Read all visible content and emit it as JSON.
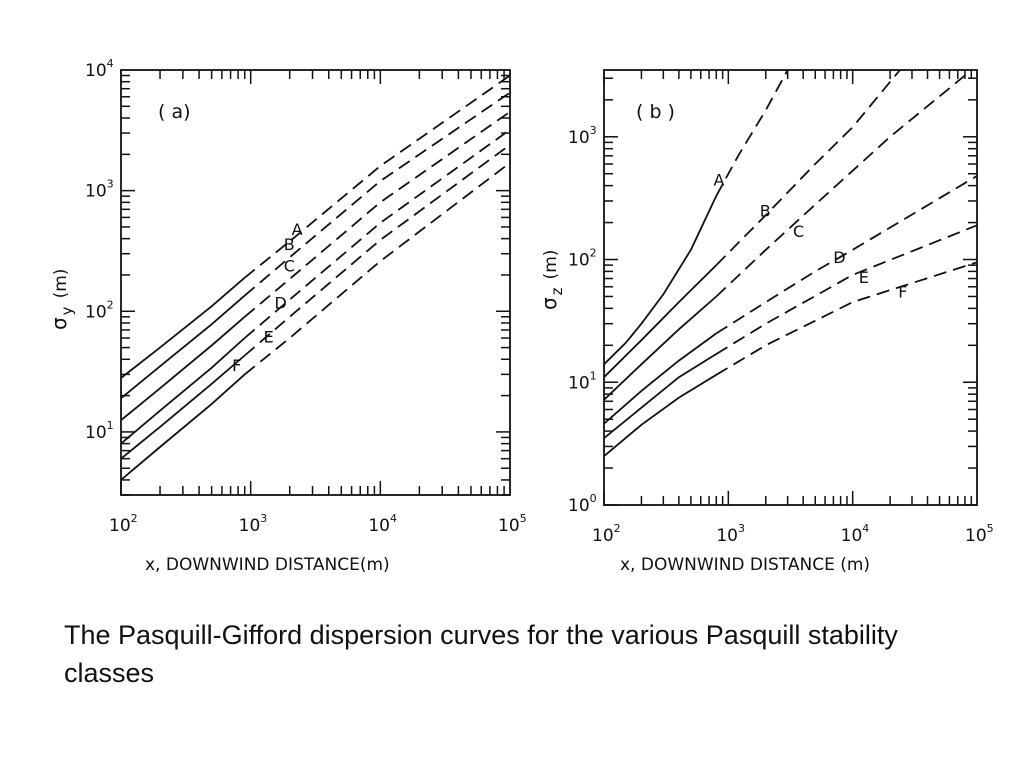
{
  "caption": "The Pasquill-Gifford dispersion curves for the various Pasquill stability classes",
  "chart_data": [
    {
      "type": "line",
      "panel_label": "( a)",
      "xlabel": "x, DOWNWIND DISTANCE(m)",
      "ylabel_symbol": "σ",
      "ylabel_sub": "y",
      "ylabel_unit": "(m)",
      "x_scale": "log",
      "y_scale": "log",
      "xlim": [
        100,
        100000
      ],
      "ylim": [
        3,
        10000
      ],
      "x_ticks": [
        {
          "v": 100,
          "b": "10",
          "e": "2"
        },
        {
          "v": 1000,
          "b": "10",
          "e": "3"
        },
        {
          "v": 10000,
          "b": "10",
          "e": "4"
        },
        {
          "v": 100000,
          "b": "10",
          "e": "5"
        }
      ],
      "y_ticks": [
        {
          "v": 10,
          "b": "10",
          "e": "1"
        },
        {
          "v": 100,
          "b": "10",
          "e": "2"
        },
        {
          "v": 1000,
          "b": "10",
          "e": "3"
        },
        {
          "v": 10000,
          "b": "10",
          "e": "4"
        }
      ],
      "grid": false,
      "style_note": "solid up to about 1000 m, dashed beyond",
      "series": [
        {
          "name": "A",
          "label_x": 2300,
          "label_y": 480,
          "solid": [
            [
              100,
              28
            ],
            [
              200,
              50
            ],
            [
              500,
              110
            ],
            [
              900,
              190
            ]
          ],
          "dashed": [
            [
              900,
              190
            ],
            [
              2000,
              380
            ],
            [
              10000,
              1600
            ],
            [
              100000,
              9000
            ]
          ]
        },
        {
          "name": "B",
          "label_x": 2000,
          "label_y": 360,
          "solid": [
            [
              100,
              19
            ],
            [
              200,
              35
            ],
            [
              500,
              78
            ],
            [
              900,
              135
            ]
          ],
          "dashed": [
            [
              900,
              135
            ],
            [
              2000,
              280
            ],
            [
              10000,
              1200
            ],
            [
              100000,
              6500
            ]
          ]
        },
        {
          "name": "C",
          "label_x": 2000,
          "label_y": 240,
          "solid": [
            [
              100,
              12.5
            ],
            [
              200,
              23
            ],
            [
              500,
              52
            ],
            [
              900,
              90
            ]
          ],
          "dashed": [
            [
              900,
              90
            ],
            [
              2000,
              185
            ],
            [
              10000,
              800
            ],
            [
              100000,
              4500
            ]
          ]
        },
        {
          "name": "D",
          "label_x": 1700,
          "label_y": 118,
          "solid": [
            [
              100,
              8
            ],
            [
              200,
              15
            ],
            [
              500,
              34
            ],
            [
              900,
              60
            ]
          ],
          "dashed": [
            [
              900,
              60
            ],
            [
              2000,
              125
            ],
            [
              10000,
              540
            ],
            [
              100000,
              3200
            ]
          ]
        },
        {
          "name": "E",
          "label_x": 1400,
          "label_y": 62,
          "solid": [
            [
              100,
              6
            ],
            [
              200,
              11
            ],
            [
              500,
              25
            ],
            [
              900,
              43
            ]
          ],
          "dashed": [
            [
              900,
              43
            ],
            [
              2000,
              90
            ],
            [
              10000,
              390
            ],
            [
              100000,
              2400
            ]
          ]
        },
        {
          "name": "F",
          "label_x": 800,
          "label_y": 36,
          "solid": [
            [
              100,
              4
            ],
            [
              200,
              7.5
            ],
            [
              500,
              17
            ],
            [
              900,
              30
            ]
          ],
          "dashed": [
            [
              900,
              30
            ],
            [
              2000,
              60
            ],
            [
              10000,
              260
            ],
            [
              100000,
              1700
            ]
          ]
        }
      ]
    },
    {
      "type": "line",
      "panel_label": "( b )",
      "xlabel": "x, DOWNWIND DISTANCE (m)",
      "ylabel_symbol": "σ",
      "ylabel_sub": "z",
      "ylabel_unit": "(m)",
      "x_scale": "log",
      "y_scale": "log",
      "xlim": [
        100,
        100000
      ],
      "ylim": [
        1,
        3500
      ],
      "x_ticks": [
        {
          "v": 100,
          "b": "10",
          "e": "2"
        },
        {
          "v": 1000,
          "b": "10",
          "e": "3"
        },
        {
          "v": 10000,
          "b": "10",
          "e": "4"
        },
        {
          "v": 100000,
          "b": "10",
          "e": "5"
        }
      ],
      "y_ticks": [
        {
          "v": 1,
          "b": "10",
          "e": "0"
        },
        {
          "v": 10,
          "b": "10",
          "e": "1"
        },
        {
          "v": 100,
          "b": "10",
          "e": "2"
        },
        {
          "v": 1000,
          "b": "10",
          "e": "3"
        }
      ],
      "grid": false,
      "style_note": "solid up to about 1000 m, dashed beyond",
      "series": [
        {
          "name": "A",
          "label_x": 850,
          "label_y": 450,
          "solid": [
            [
              100,
              14
            ],
            [
              150,
              21
            ],
            [
              200,
              30
            ],
            [
              300,
              52
            ],
            [
              500,
              120
            ],
            [
              800,
              330
            ]
          ],
          "dashed": [
            [
              800,
              330
            ],
            [
              1200,
              700
            ],
            [
              2000,
              1650
            ],
            [
              3000,
              3500
            ]
          ]
        },
        {
          "name": "B",
          "label_x": 2000,
          "label_y": 250,
          "solid": [
            [
              100,
              11
            ],
            [
              200,
              22
            ],
            [
              400,
              45
            ],
            [
              800,
              90
            ]
          ],
          "dashed": [
            [
              800,
              90
            ],
            [
              2000,
              230
            ],
            [
              5000,
              600
            ],
            [
              10000,
              1200
            ],
            [
              24000,
              3500
            ]
          ]
        },
        {
          "name": "C",
          "label_x": 3700,
          "label_y": 170,
          "solid": [
            [
              100,
              7.2
            ],
            [
              200,
              14
            ],
            [
              400,
              27
            ],
            [
              800,
              50
            ]
          ],
          "dashed": [
            [
              800,
              50
            ],
            [
              2000,
              120
            ],
            [
              5000,
              280
            ],
            [
              20000,
              1000
            ],
            [
              100000,
              3800
            ]
          ]
        },
        {
          "name": "D",
          "label_x": 7800,
          "label_y": 105,
          "solid": [
            [
              100,
              4.6
            ],
            [
              200,
              8.5
            ],
            [
              400,
              15
            ],
            [
              800,
              25
            ]
          ],
          "dashed": [
            [
              800,
              25
            ],
            [
              2000,
              45
            ],
            [
              5000,
              80
            ],
            [
              10000,
              120
            ],
            [
              100000,
              480
            ]
          ]
        },
        {
          "name": "E",
          "label_x": 12500,
          "label_y": 72,
          "solid": [
            [
              100,
              3.5
            ],
            [
              200,
              6.2
            ],
            [
              400,
              11
            ],
            [
              800,
              17
            ]
          ],
          "dashed": [
            [
              800,
              17
            ],
            [
              2000,
              30
            ],
            [
              10000,
              75
            ],
            [
              100000,
              190
            ]
          ]
        },
        {
          "name": "F",
          "label_x": 26000,
          "label_y": 55,
          "solid": [
            [
              100,
              2.5
            ],
            [
              200,
              4.5
            ],
            [
              400,
              7.5
            ],
            [
              800,
              11.5
            ]
          ],
          "dashed": [
            [
              800,
              11.5
            ],
            [
              2000,
              20
            ],
            [
              10000,
              45
            ],
            [
              100000,
              95
            ]
          ]
        }
      ]
    }
  ]
}
